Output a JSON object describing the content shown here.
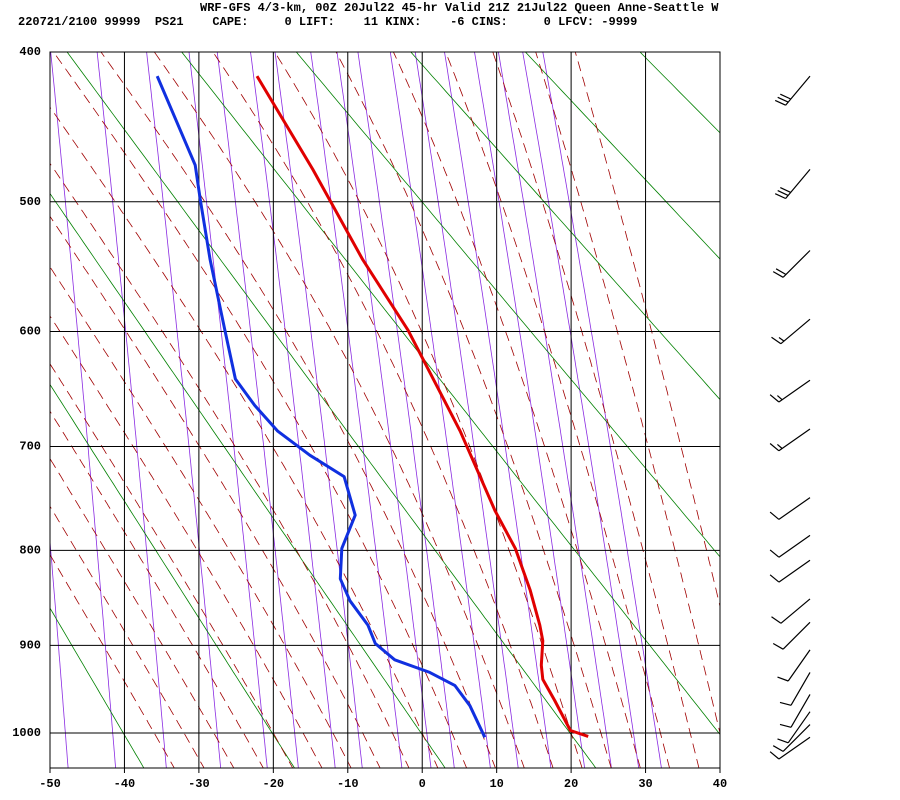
{
  "chart_data": {
    "type": "sounding",
    "title": "WRF-GFS 4/3-km, 00Z 20Jul22 45-hr Valid 21Z 21Jul22 Queen Anne-Seattle W",
    "subtitle": "220721/2100 99999  PS21    CAPE:     0 LIFT:    11 KINX:    -6 CINS:     0 LFCV: -9999",
    "xlim": [
      -50,
      40
    ],
    "xticks": [
      -50,
      -40,
      -30,
      -20,
      -10,
      0,
      10,
      20,
      30,
      40
    ],
    "ylim": [
      400,
      1042
    ],
    "yticks": [
      400,
      500,
      600,
      700,
      800,
      900,
      1000
    ],
    "grid": true,
    "series": [
      {
        "color": "#e00000",
        "pressure": [
          415,
          477,
          543,
          599,
          686,
          761,
          798,
          841,
          878,
          895,
          922,
          938,
          962,
          997,
          1004
        ],
        "temperature": [
          -22.2,
          -14.7,
          -8.0,
          -1.9,
          5.1,
          9.8,
          12.5,
          14.5,
          15.8,
          16.2,
          16.0,
          16.2,
          17.8,
          19.9,
          22.3
        ]
      },
      {
        "color": "#1030e0",
        "pressure": [
          415,
          474,
          499,
          543,
          599,
          640,
          663,
          686,
          708,
          728,
          765,
          798,
          829,
          852,
          878,
          898,
          916,
          930,
          945,
          968,
          1005
        ],
        "temperature": [
          -35.6,
          -30.5,
          -29.8,
          -28.5,
          -26.5,
          -25.1,
          -22.5,
          -19.4,
          -15.1,
          -10.5,
          -9.0,
          -10.8,
          -11.0,
          -9.7,
          -7.3,
          -6.3,
          -3.7,
          1.0,
          4.4,
          6.4,
          8.4
        ]
      }
    ],
    "winds": [
      {
        "pressure": 415,
        "direction": 220,
        "speed": 30
      },
      {
        "pressure": 477,
        "direction": 220,
        "speed": 30
      },
      {
        "pressure": 536,
        "direction": 225,
        "speed": 20
      },
      {
        "pressure": 590,
        "direction": 230,
        "speed": 15
      },
      {
        "pressure": 641,
        "direction": 235,
        "speed": 15
      },
      {
        "pressure": 684,
        "direction": 235,
        "speed": 15
      },
      {
        "pressure": 748,
        "direction": 235,
        "speed": 10
      },
      {
        "pressure": 785,
        "direction": 235,
        "speed": 10
      },
      {
        "pressure": 810,
        "direction": 235,
        "speed": 10
      },
      {
        "pressure": 850,
        "direction": 230,
        "speed": 10
      },
      {
        "pressure": 875,
        "direction": 225,
        "speed": 10
      },
      {
        "pressure": 905,
        "direction": 215,
        "speed": 10
      },
      {
        "pressure": 930,
        "direction": 210,
        "speed": 10
      },
      {
        "pressure": 955,
        "direction": 210,
        "speed": 10
      },
      {
        "pressure": 975,
        "direction": 215,
        "speed": 10
      },
      {
        "pressure": 990,
        "direction": 225,
        "speed": 10
      },
      {
        "pressure": 1005,
        "direction": 235,
        "speed": 10
      }
    ]
  }
}
